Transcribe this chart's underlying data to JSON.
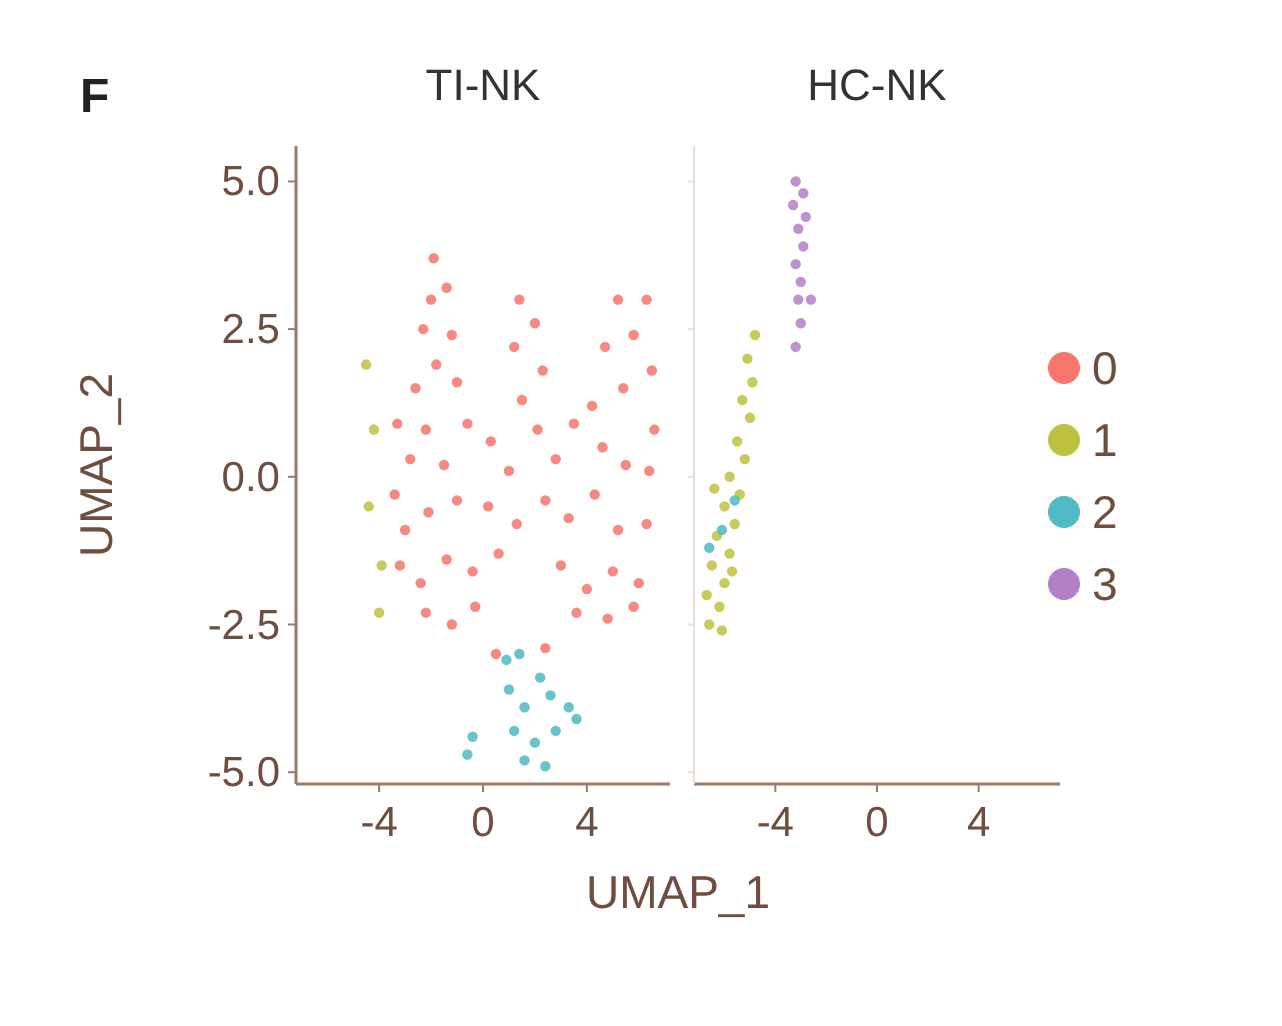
{
  "chart_data": [
    {
      "type": "scatter",
      "title": "TI-NK",
      "xlabel": "UMAP_1",
      "ylabel": "UMAP_2",
      "annotations": [
        "F"
      ],
      "marker": "circle",
      "grid": false,
      "legend": false,
      "xlim": [
        -7.2,
        7.2
      ],
      "xticks": [
        -4,
        0,
        4
      ],
      "ylim": [
        -5.2,
        5.6
      ],
      "yticks": [
        {
          "value": -5,
          "label": "-5.0"
        },
        {
          "value": -2.5,
          "label": "-2.5"
        },
        {
          "value": 0,
          "label": "0.0"
        },
        {
          "value": 2.5,
          "label": "2.5"
        },
        {
          "value": 5,
          "label": "5.0"
        }
      ],
      "series": [
        {
          "color": "#f4766c",
          "x": [
            -1.9,
            -2.0,
            -1.4,
            -2.3,
            -1.2,
            -1.8,
            -2.6,
            -1.0,
            1.4,
            2.0,
            1.2,
            2.3,
            1.5,
            5.2,
            6.3,
            5.8,
            4.7,
            6.5,
            5.4,
            4.2,
            6.6,
            -3.3,
            -2.8,
            -3.4,
            -2.2,
            -1.5,
            -0.6,
            0.3,
            1.0,
            2.1,
            2.8,
            3.5,
            4.6,
            5.5,
            6.4,
            -3.0,
            -2.1,
            -1.0,
            0.2,
            1.3,
            2.4,
            3.3,
            4.3,
            5.2,
            6.3,
            -3.2,
            -2.4,
            -1.4,
            -0.4,
            0.6,
            3.0,
            4.0,
            5.0,
            6.0,
            -2.2,
            -1.2,
            -0.3,
            3.6,
            4.8,
            5.8,
            0.5,
            2.4
          ],
          "values": [
            3.7,
            3.0,
            3.2,
            2.5,
            2.4,
            1.9,
            1.5,
            1.6,
            3.0,
            2.6,
            2.2,
            1.8,
            1.3,
            3.0,
            3.0,
            2.4,
            2.2,
            1.8,
            1.5,
            1.2,
            0.8,
            0.9,
            0.3,
            -0.3,
            0.8,
            0.2,
            0.9,
            0.6,
            0.1,
            0.8,
            0.3,
            0.9,
            0.5,
            0.2,
            0.1,
            -0.9,
            -0.6,
            -0.4,
            -0.5,
            -0.8,
            -0.4,
            -0.7,
            -0.3,
            -0.9,
            -0.8,
            -1.5,
            -1.8,
            -1.4,
            -1.6,
            -1.3,
            -1.5,
            -1.9,
            -1.6,
            -1.8,
            -2.3,
            -2.5,
            -2.2,
            -2.3,
            -2.4,
            -2.2,
            -3.0,
            -2.9
          ]
        },
        {
          "color": "#bcc23c",
          "x": [
            -4.5,
            -4.2,
            -4.4,
            -3.9,
            -4.0
          ],
          "values": [
            1.9,
            0.8,
            -0.5,
            -1.5,
            -2.3
          ]
        },
        {
          "color": "#4fb9c4",
          "x": [
            0.9,
            1.4,
            2.2,
            1.0,
            1.6,
            2.6,
            3.3,
            1.2,
            2.0,
            2.8,
            3.6,
            1.6,
            2.4,
            -0.6,
            -0.4
          ],
          "values": [
            -3.1,
            -3.0,
            -3.4,
            -3.6,
            -3.9,
            -3.7,
            -3.9,
            -4.3,
            -4.5,
            -4.3,
            -4.1,
            -4.8,
            -4.9,
            -4.7,
            -4.4
          ]
        }
      ]
    },
    {
      "type": "scatter",
      "title": "HC-NK",
      "marker": "circle",
      "grid": false,
      "legend": "right",
      "tick_labels": "x",
      "xlim": [
        -7.2,
        7.2
      ],
      "xticks": [
        -4,
        0,
        4
      ],
      "ylim": [
        -5.2,
        5.6
      ],
      "yticks": [
        {
          "value": -5,
          "label": null
        },
        {
          "value": -2.5,
          "label": null
        },
        {
          "value": 0,
          "label": null
        },
        {
          "value": 2.5,
          "label": null
        },
        {
          "value": 5,
          "label": null
        }
      ],
      "series": [
        {
          "name": "0",
          "color": "#f4766c"
        },
        {
          "name": "1",
          "color": "#bcc23c",
          "x": [
            -4.8,
            -5.1,
            -4.9,
            -5.3,
            -5.0,
            -5.5,
            -5.2,
            -5.8,
            -5.4,
            -6.0,
            -5.6,
            -6.3,
            -5.8,
            -6.5,
            -6.0,
            -6.7,
            -6.2,
            -6.6,
            -6.1,
            -5.7,
            -6.4
          ],
          "values": [
            2.4,
            2.0,
            1.6,
            1.3,
            1.0,
            0.6,
            0.3,
            0.0,
            -0.3,
            -0.5,
            -0.8,
            -1.0,
            -1.3,
            -1.5,
            -1.8,
            -2.0,
            -2.2,
            -2.5,
            -2.6,
            -1.6,
            -0.2
          ]
        },
        {
          "name": "2",
          "color": "#4fb9c4",
          "x": [
            -6.1,
            -5.6,
            -6.6
          ],
          "values": [
            -0.9,
            -0.4,
            -1.2
          ]
        },
        {
          "name": "3",
          "color": "#b37fc7",
          "x": [
            -3.2,
            -2.9,
            -3.3,
            -2.8,
            -3.1,
            -2.9,
            -3.2,
            -3.0,
            -3.1,
            -3.0,
            -3.2,
            -2.6
          ],
          "values": [
            5.0,
            4.8,
            4.6,
            4.4,
            4.2,
            3.9,
            3.6,
            3.3,
            3.0,
            2.6,
            2.2,
            3.0
          ]
        }
      ]
    }
  ]
}
